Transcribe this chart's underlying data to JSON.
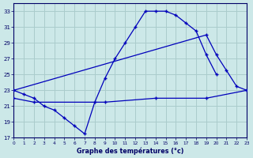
{
  "bg_color": "#cce8e8",
  "grid_color": "#aacccc",
  "line_color": "#0000bb",
  "xlim": [
    0,
    23
  ],
  "ylim": [
    17,
    34
  ],
  "xtick_labels": [
    "0",
    "1",
    "2",
    "3",
    "4",
    "5",
    "6",
    "7",
    "8",
    "9",
    "10",
    "11",
    "12",
    "13",
    "14",
    "15",
    "16",
    "17",
    "18",
    "19",
    "20",
    "21",
    "22",
    "23"
  ],
  "ytick_vals": [
    17,
    19,
    21,
    23,
    25,
    27,
    29,
    31,
    33
  ],
  "xlabel": "Graphe des températures (°c)",
  "curve1_x": [
    0,
    1,
    2,
    3,
    4,
    5,
    6,
    7,
    8,
    9,
    10,
    11,
    12,
    13,
    14,
    15,
    16,
    17,
    18,
    19,
    20
  ],
  "curve1_y": [
    23.0,
    22.5,
    22.0,
    21.0,
    20.5,
    19.5,
    18.5,
    17.5,
    21.5,
    24.5,
    27.0,
    29.0,
    31.0,
    33.0,
    33.0,
    33.0,
    32.5,
    31.5,
    30.5,
    27.5,
    25.0
  ],
  "curve2_x": [
    0,
    19,
    20,
    21,
    22,
    23
  ],
  "curve2_y": [
    23.0,
    30.0,
    27.5,
    25.5,
    23.5,
    23.0
  ],
  "curve3_x": [
    0,
    2,
    9,
    14,
    19,
    23
  ],
  "curve3_y": [
    22.0,
    21.5,
    21.5,
    22.0,
    22.0,
    23.0
  ]
}
